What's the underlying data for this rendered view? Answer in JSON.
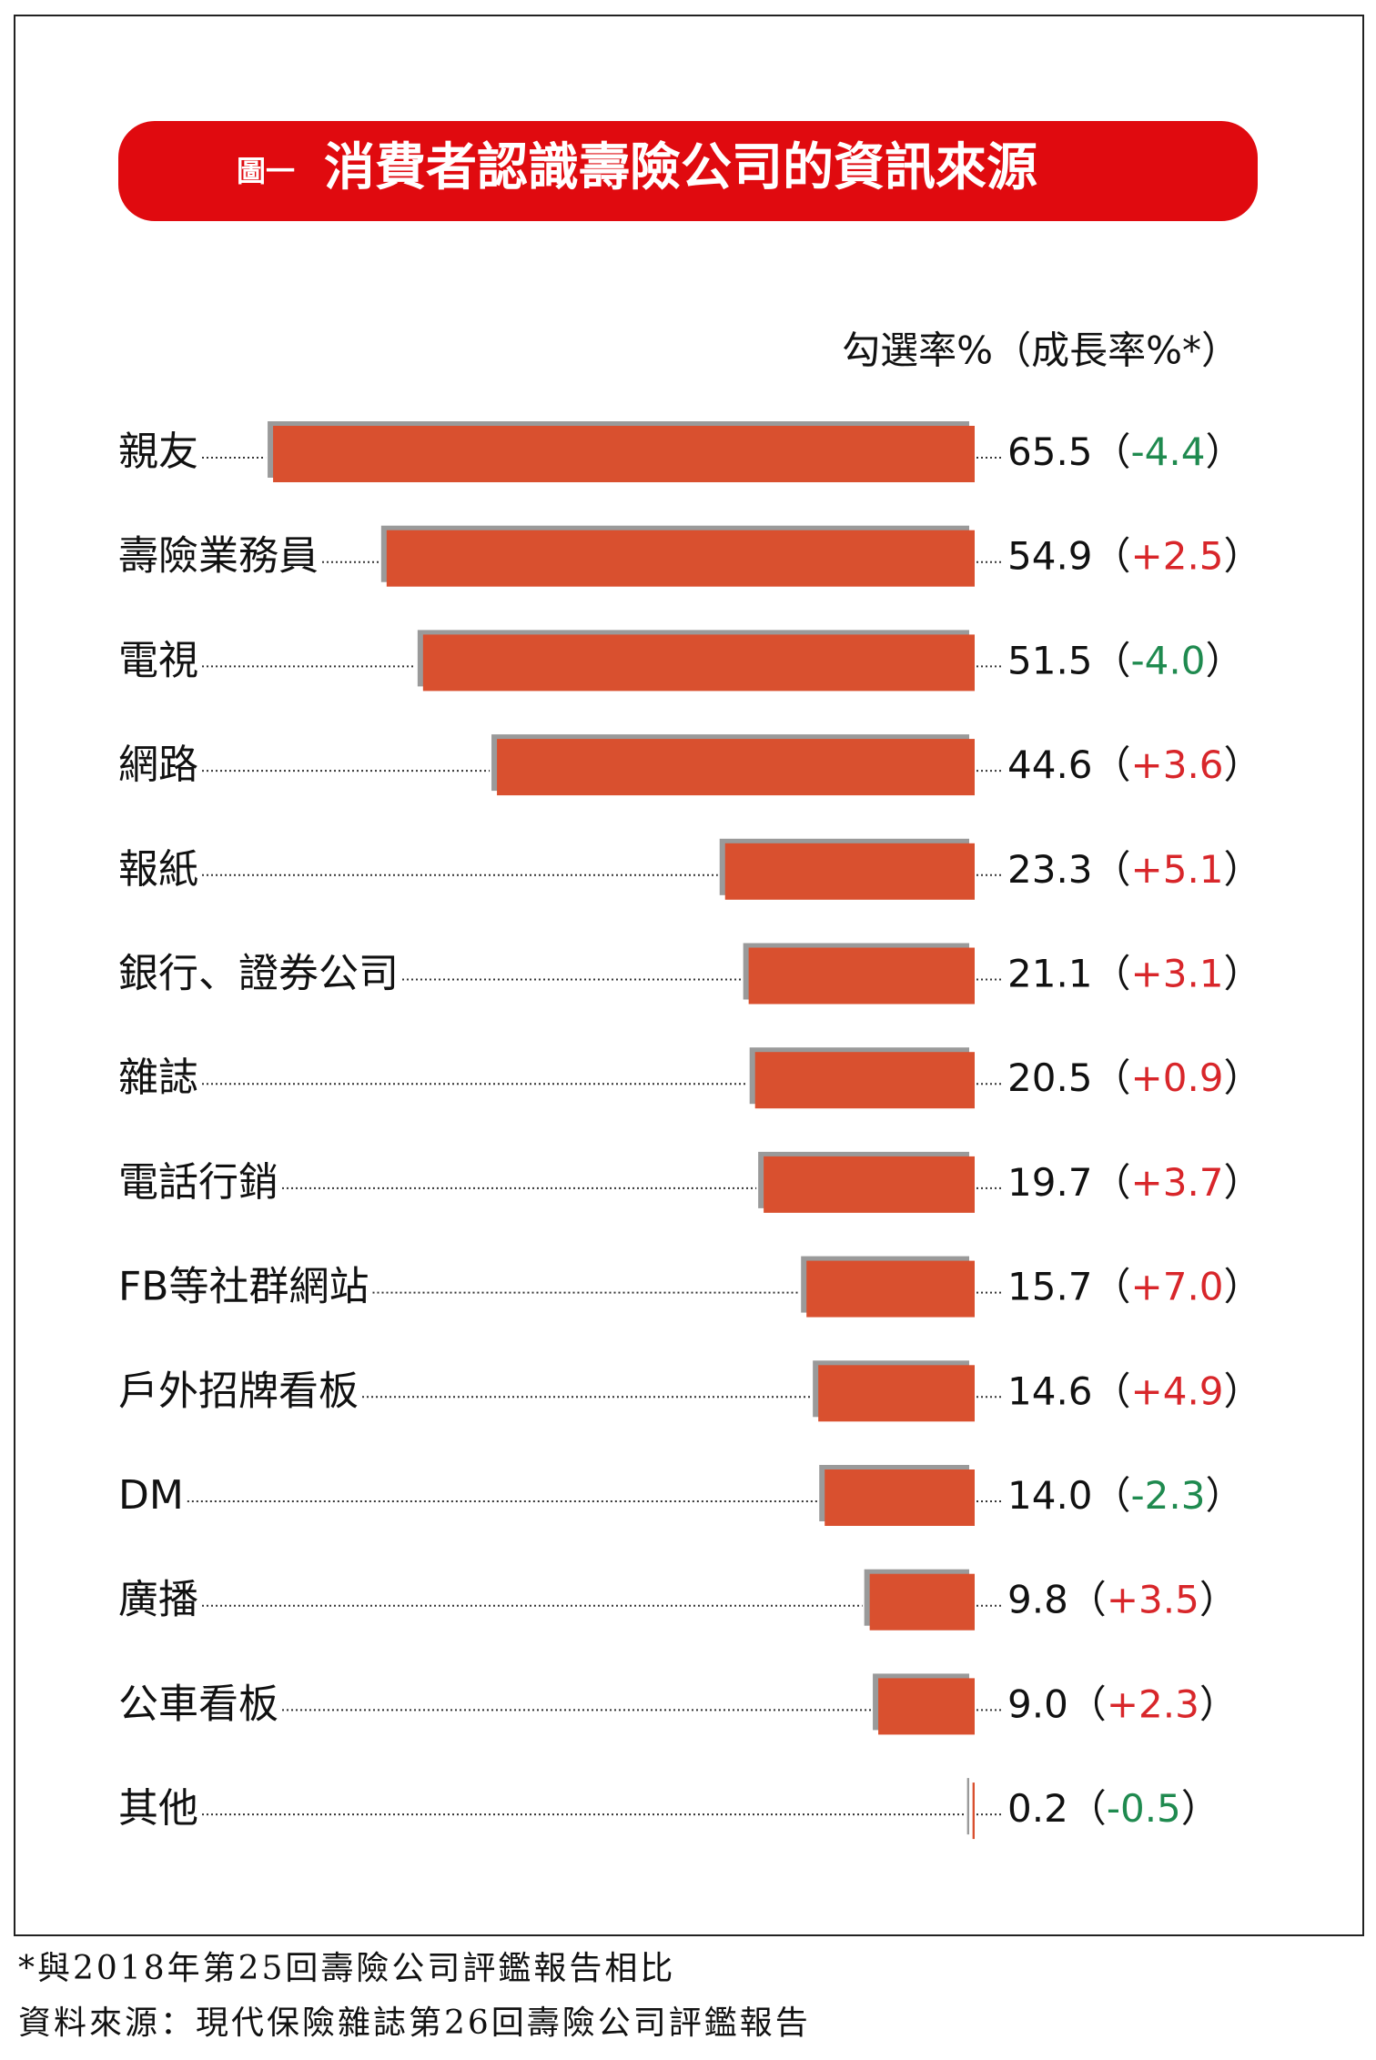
{
  "chart_data": {
    "type": "bar",
    "figure_label": "圖一",
    "title": "消費者認識壽險公司的資訊來源",
    "value_header": "勾選率%（成長率%*）",
    "categories": [
      "親友",
      "壽險業務員",
      "電視",
      "網路",
      "報紙",
      "銀行、證券公司",
      "雜誌",
      "電話行銷",
      "FB等社群網站",
      "戶外招牌看板",
      "DM",
      "廣播",
      "公車看板",
      "其他"
    ],
    "values": [
      65.5,
      54.9,
      51.5,
      44.6,
      23.3,
      21.1,
      20.5,
      19.7,
      15.7,
      14.6,
      14.0,
      9.8,
      9.0,
      0.2
    ],
    "value_labels": [
      "65.5",
      "54.9",
      "51.5",
      "44.6",
      "23.3",
      "21.1",
      "20.5",
      "19.7",
      "15.7",
      "14.6",
      "14.0",
      "9.8",
      "9.0",
      "0.2"
    ],
    "growth": {
      "values": [
        -4.4,
        2.5,
        -4.0,
        3.6,
        5.1,
        3.1,
        0.9,
        3.7,
        7.0,
        4.9,
        -2.3,
        3.5,
        2.3,
        -0.5
      ],
      "value_labels": [
        "-4.4",
        "+2.5",
        "-4.0",
        "+3.6",
        "+5.1",
        "+3.1",
        "+0.9",
        "+3.7",
        "+7.0",
        "+4.9",
        "-2.3",
        "+3.5",
        "+2.3",
        "-0.5"
      ],
      "positive_color": "#d8262a",
      "negative_color": "#1f8a4f"
    },
    "brackets": [
      "（",
      "）"
    ],
    "color": "#d9502f",
    "title_color": "#e00a0f",
    "footnotes": [
      "*與2018年第25回壽險公司評鑑報告相比",
      "資料來源：現代保險雜誌第26回壽險公司評鑑報告"
    ]
  }
}
